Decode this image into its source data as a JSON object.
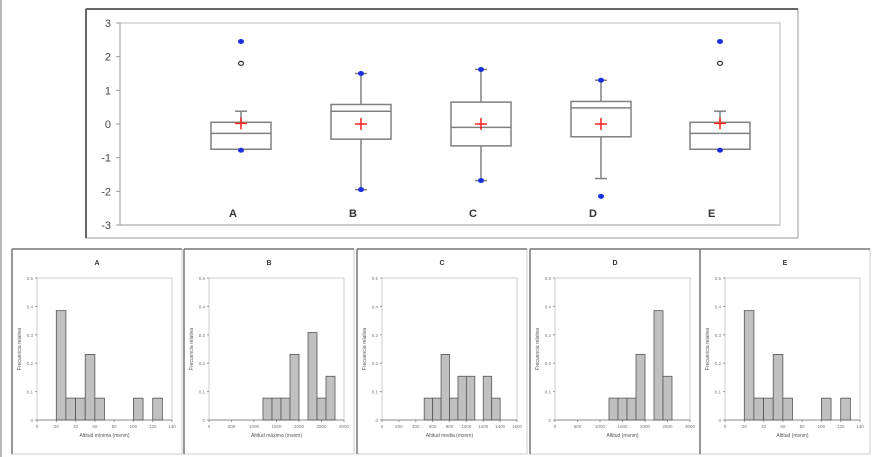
{
  "chart_data": [
    {
      "type": "boxplot",
      "categories": [
        "A",
        "B",
        "C",
        "D",
        "E"
      ],
      "ylim": [
        -3,
        3
      ],
      "yticks": [
        3,
        2,
        1,
        0,
        -1,
        -2,
        -3
      ],
      "grid": false,
      "colors": {
        "box": "#808080",
        "mean": "#ff2020",
        "extreme": "#1a2fe0",
        "outlier": "#333333"
      },
      "boxes": [
        {
          "q1": -0.75,
          "median": -0.28,
          "q3": 0.05,
          "whisker_low": -0.75,
          "whisker_high": 0.38,
          "mean": 0.02,
          "min": -0.78,
          "max": 2.45,
          "outliers": [
            1.8
          ]
        },
        {
          "q1": -0.45,
          "median": 0.38,
          "q3": 0.58,
          "whisker_low": -1.95,
          "whisker_high": 1.5,
          "mean": 0.0,
          "min": -1.95,
          "max": 1.5,
          "outliers": []
        },
        {
          "q1": -0.65,
          "median": -0.1,
          "q3": 0.65,
          "whisker_low": -1.68,
          "whisker_high": 1.62,
          "mean": 0.0,
          "min": -1.68,
          "max": 1.62,
          "outliers": []
        },
        {
          "q1": -0.38,
          "median": 0.48,
          "q3": 0.67,
          "whisker_low": -1.62,
          "whisker_high": 1.3,
          "mean": 0.0,
          "min": -2.15,
          "max": 1.3,
          "outliers": []
        },
        {
          "q1": -0.75,
          "median": -0.28,
          "q3": 0.05,
          "whisker_low": -0.75,
          "whisker_high": 0.38,
          "mean": 0.02,
          "min": -0.78,
          "max": 2.45,
          "outliers": [
            1.8
          ]
        }
      ]
    },
    {
      "type": "bar",
      "title": "A",
      "xlabel": "Altitud mínima (msnm)",
      "ylabel": "Frecuencia relativa",
      "xlim": [
        0,
        140
      ],
      "xticks": [
        0,
        20,
        40,
        60,
        80,
        100,
        120,
        140
      ],
      "ylim": [
        0,
        0.5
      ],
      "yticks": [
        0,
        0.1,
        0.2,
        0.3,
        0.4,
        0.5
      ],
      "bins": [
        [
          20,
          30,
          0.385
        ],
        [
          30,
          40,
          0.077
        ],
        [
          40,
          50,
          0.077
        ],
        [
          50,
          60,
          0.231
        ],
        [
          60,
          70,
          0.077
        ],
        [
          100,
          110,
          0.077
        ],
        [
          120,
          130,
          0.077
        ]
      ]
    },
    {
      "type": "bar",
      "title": "B",
      "xlabel": "Altitud máxima (msnm)",
      "ylabel": "Frecuencia relativa",
      "xlim": [
        0,
        3000
      ],
      "xticks": [
        0,
        500,
        1000,
        1500,
        2000,
        2500,
        3000
      ],
      "ylim": [
        0,
        0.5
      ],
      "yticks": [
        0,
        0.1,
        0.2,
        0.3,
        0.4,
        0.5
      ],
      "bins": [
        [
          1200,
          1400,
          0.077
        ],
        [
          1400,
          1600,
          0.077
        ],
        [
          1600,
          1800,
          0.077
        ],
        [
          1800,
          2000,
          0.231
        ],
        [
          2200,
          2400,
          0.308
        ],
        [
          2400,
          2600,
          0.077
        ],
        [
          2600,
          2800,
          0.154
        ]
      ]
    },
    {
      "type": "bar",
      "title": "C",
      "xlabel": "Altitud media (msnm)",
      "ylabel": "Frecuencia relativa",
      "xlim": [
        0,
        1600
      ],
      "xticks": [
        0,
        200,
        400,
        600,
        800,
        1000,
        1200,
        1400,
        1600
      ],
      "ylim": [
        0,
        0.5
      ],
      "yticks": [
        0,
        0.1,
        0.2,
        0.3,
        0.4,
        0.5
      ],
      "bins": [
        [
          500,
          600,
          0.077
        ],
        [
          600,
          700,
          0.077
        ],
        [
          700,
          800,
          0.231
        ],
        [
          800,
          900,
          0.077
        ],
        [
          900,
          1000,
          0.154
        ],
        [
          1000,
          1100,
          0.154
        ],
        [
          1200,
          1300,
          0.154
        ],
        [
          1300,
          1400,
          0.077
        ]
      ]
    },
    {
      "type": "bar",
      "title": "D",
      "xlabel": "Altitud (msnm)",
      "ylabel": "Frecuencia relativa",
      "xlim": [
        0,
        3000
      ],
      "xticks": [
        0,
        500,
        1000,
        1500,
        2000,
        2500,
        3000
      ],
      "ylim": [
        0,
        0.5
      ],
      "yticks": [
        0,
        0.1,
        0.2,
        0.3,
        0.4,
        0.5
      ],
      "bins": [
        [
          1200,
          1400,
          0.077
        ],
        [
          1400,
          1600,
          0.077
        ],
        [
          1600,
          1800,
          0.077
        ],
        [
          1800,
          2000,
          0.231
        ],
        [
          2200,
          2400,
          0.385
        ],
        [
          2400,
          2600,
          0.154
        ]
      ]
    },
    {
      "type": "bar",
      "title": "E",
      "xlabel": "Altitud (msnm)",
      "ylabel": "Frecuencia relativa",
      "xlim": [
        0,
        140
      ],
      "xticks": [
        0,
        20,
        40,
        60,
        80,
        100,
        120,
        140
      ],
      "ylim": [
        0,
        0.5
      ],
      "yticks": [
        0,
        0.1,
        0.2,
        0.3,
        0.4,
        0.5
      ],
      "bins": [
        [
          20,
          30,
          0.385
        ],
        [
          30,
          40,
          0.077
        ],
        [
          40,
          50,
          0.077
        ],
        [
          50,
          60,
          0.231
        ],
        [
          60,
          70,
          0.077
        ],
        [
          100,
          110,
          0.077
        ],
        [
          120,
          130,
          0.077
        ]
      ]
    }
  ]
}
